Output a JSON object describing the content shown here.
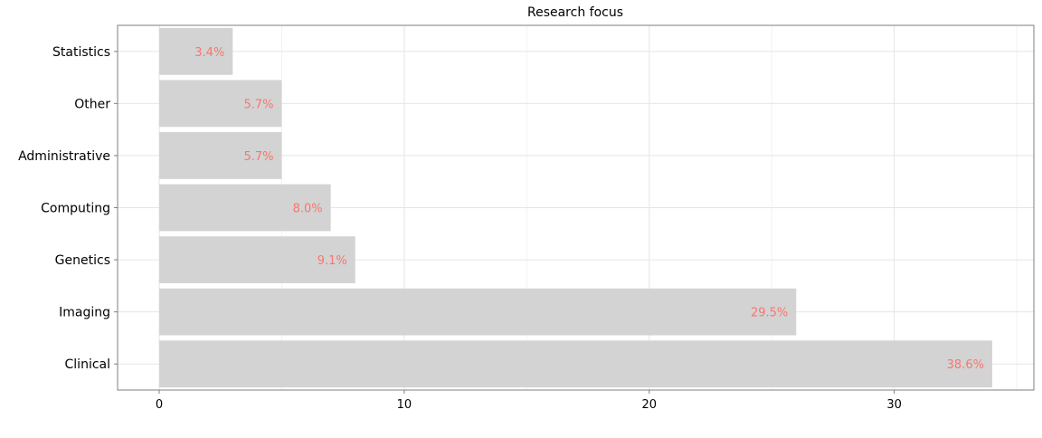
{
  "chart_data": {
    "type": "bar",
    "orientation": "horizontal",
    "title": "Research focus",
    "xlabel": "",
    "ylabel": "",
    "categories": [
      "Statistics",
      "Other",
      "Administrative",
      "Computing",
      "Genetics",
      "Imaging",
      "Clinical"
    ],
    "values": [
      3,
      5,
      5,
      7,
      8,
      26,
      34
    ],
    "data_labels": [
      "3.4%",
      "5.7%",
      "5.7%",
      "8.0%",
      "9.1%",
      "29.5%",
      "38.6%"
    ],
    "xlim": [
      -1.7,
      35.7
    ],
    "xticks": [
      0,
      10,
      20,
      30
    ],
    "xtick_labels": [
      "0",
      "10",
      "20",
      "30"
    ],
    "grid": true,
    "legend": "none",
    "colors": {
      "bar": "#d3d3d3",
      "label": "#f8766d",
      "grid_major": "#e5e5e5",
      "grid_minor": "#f2f2f2",
      "panel_border": "#7f7f7f",
      "text": "#000000"
    }
  }
}
